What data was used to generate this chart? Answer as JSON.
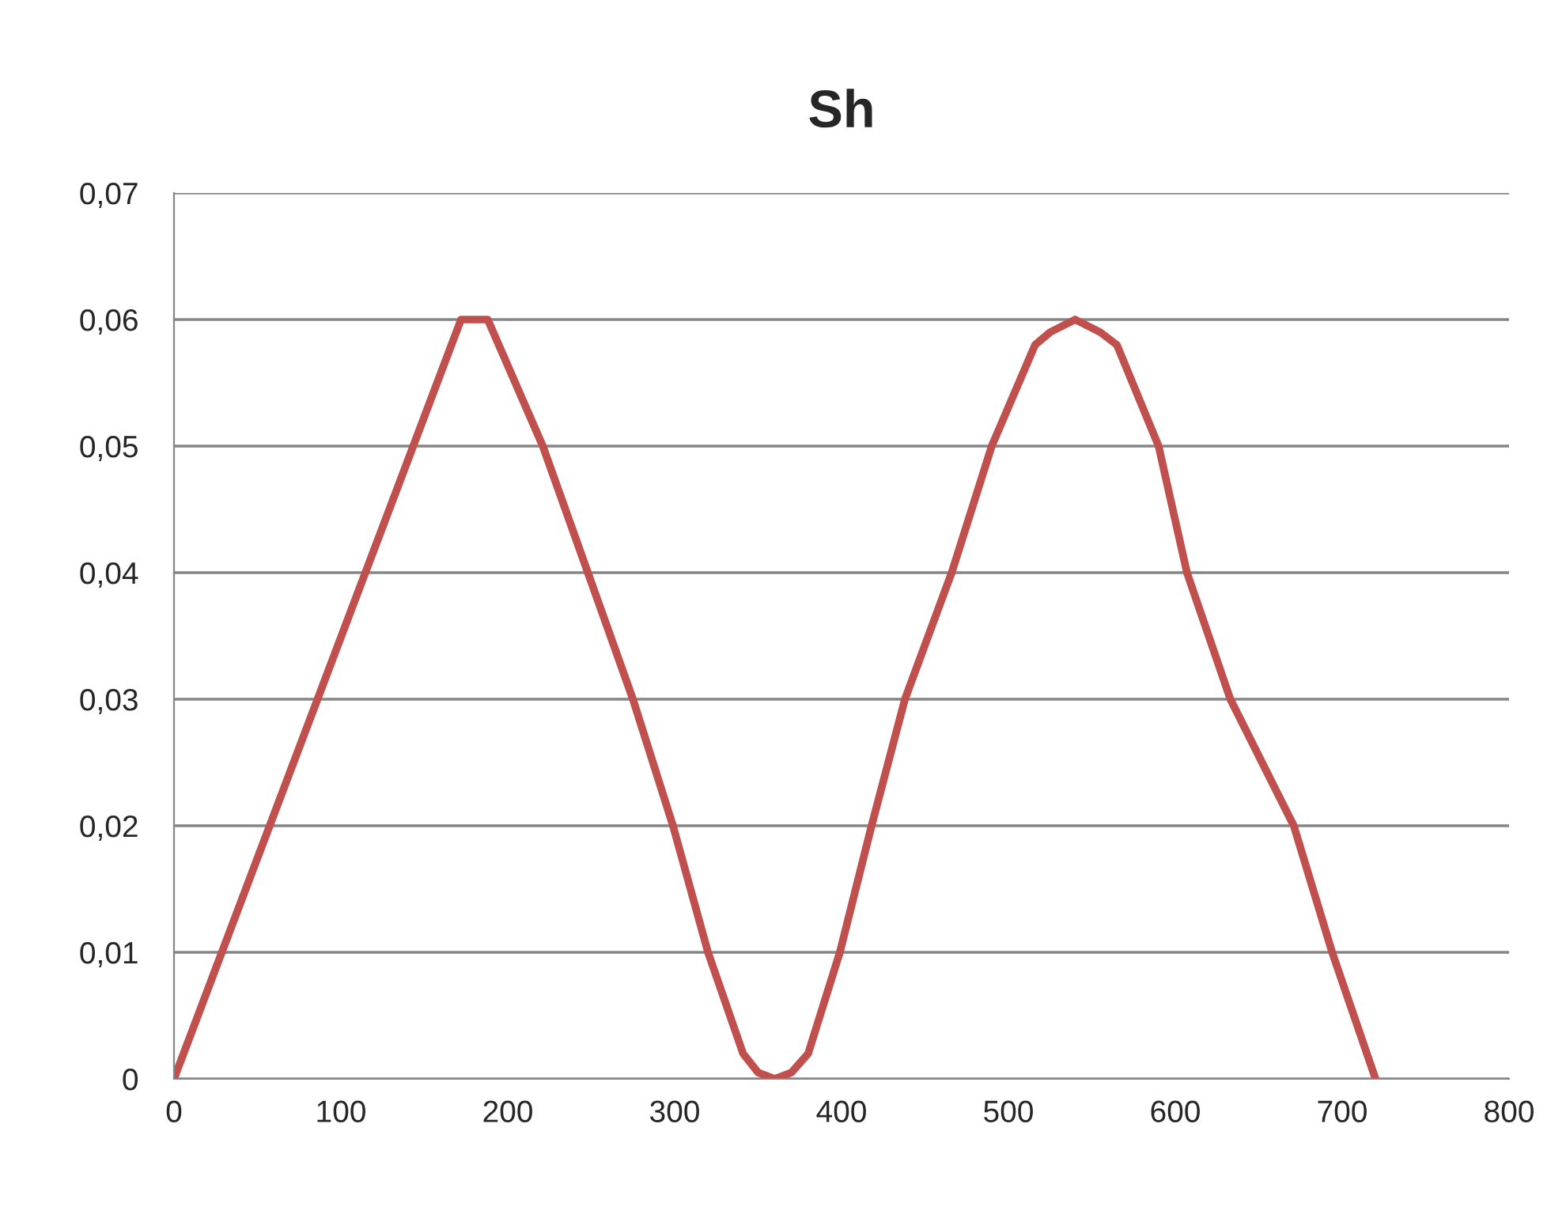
{
  "chart_data": {
    "type": "line",
    "title": "Sh",
    "x": [
      0,
      172,
      188,
      221,
      248,
      275,
      299,
      320,
      341,
      350,
      360,
      370,
      380,
      399,
      418,
      438,
      466,
      490,
      516,
      525,
      540,
      555,
      565,
      590,
      607,
      633,
      671,
      694,
      720
    ],
    "series": [
      {
        "color": "#c0504d",
        "values": [
          0,
          0.06,
          0.06,
          0.05,
          0.04,
          0.03,
          0.02,
          0.01,
          0.002,
          0.0005,
          0,
          0.0005,
          0.002,
          0.01,
          0.02,
          0.03,
          0.04,
          0.05,
          0.058,
          0.059,
          0.06,
          0.059,
          0.058,
          0.05,
          0.04,
          0.03,
          0.02,
          0.01,
          0
        ]
      }
    ],
    "xlim": [
      0,
      800
    ],
    "xticks": [
      0,
      100,
      200,
      300,
      400,
      500,
      600,
      700,
      800
    ],
    "ylim": [
      0,
      0.07
    ],
    "yticks": [
      {
        "value": 0,
        "label": "0"
      },
      {
        "value": 0.01,
        "label": "0,01"
      },
      {
        "value": 0.02,
        "label": "0,02"
      },
      {
        "value": 0.03,
        "label": "0,03"
      },
      {
        "value": 0.04,
        "label": "0,04"
      },
      {
        "value": 0.05,
        "label": "0,05"
      },
      {
        "value": 0.06,
        "label": "0,06"
      },
      {
        "value": 0.07,
        "label": "0,07"
      }
    ],
    "grid": "y",
    "marker": "none",
    "line_style": "solid",
    "legend": false
  }
}
